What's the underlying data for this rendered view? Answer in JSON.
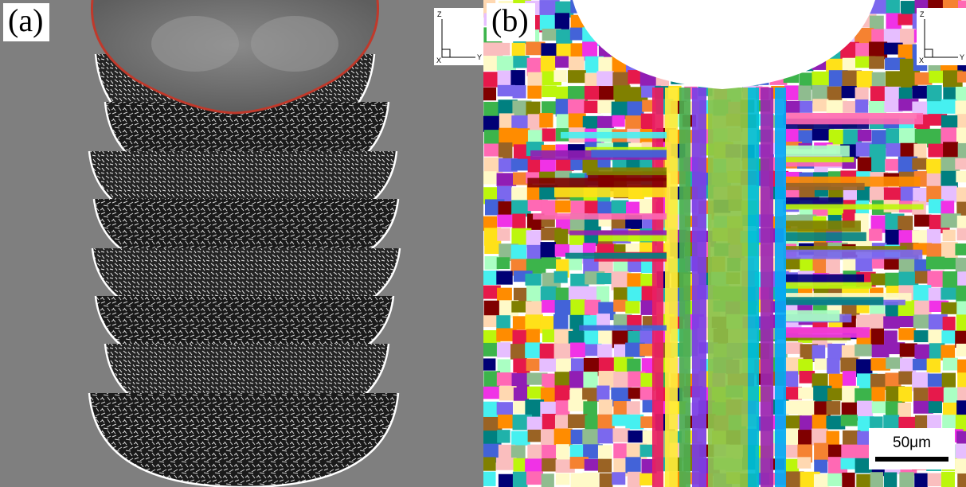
{
  "figure": {
    "panel_a": {
      "label": "(a)",
      "axes": {
        "z": "Z",
        "y": "Y",
        "x": "X"
      },
      "colors": {
        "background": "#7f7f7f",
        "boundary_top": "#c0392b",
        "track_edge": "#ffffff"
      }
    },
    "panel_b": {
      "label": "(b)",
      "axes": {
        "z": "Z",
        "y": "Y",
        "x": "X"
      },
      "scale_bar": "50μm"
    }
  }
}
